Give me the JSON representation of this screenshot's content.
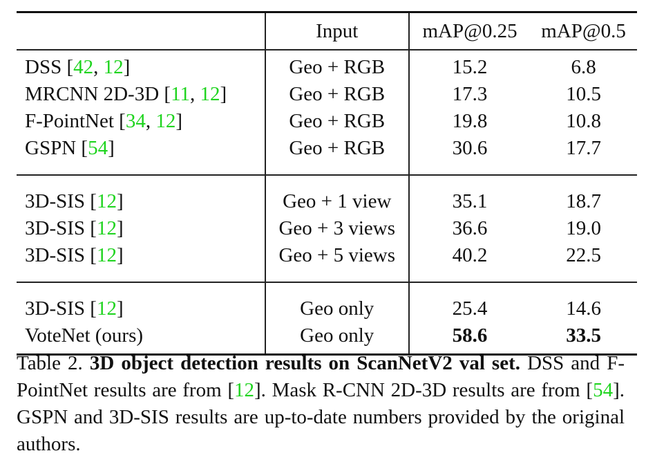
{
  "table": {
    "header": {
      "input": "Input",
      "map25": "mAP@0.25",
      "map50": "mAP@0.5"
    },
    "groups": [
      [
        {
          "method": "DSS",
          "cites": [
            "42",
            "12"
          ],
          "input": "Geo + RGB",
          "map25": "15.2",
          "map50": "6.8"
        },
        {
          "method": "MRCNN 2D-3D",
          "cites": [
            "11",
            "12"
          ],
          "input": "Geo + RGB",
          "map25": "17.3",
          "map50": "10.5"
        },
        {
          "method": "F-PointNet",
          "cites": [
            "34",
            "12"
          ],
          "input": "Geo + RGB",
          "map25": "19.8",
          "map50": "10.8"
        },
        {
          "method": "GSPN",
          "cites": [
            "54"
          ],
          "input": "Geo + RGB",
          "map25": "30.6",
          "map50": "17.7"
        }
      ],
      [
        {
          "method": "3D-SIS",
          "cites": [
            "12"
          ],
          "input": "Geo + 1 view",
          "map25": "35.1",
          "map50": "18.7"
        },
        {
          "method": "3D-SIS",
          "cites": [
            "12"
          ],
          "input": "Geo + 3 views",
          "map25": "36.6",
          "map50": "19.0"
        },
        {
          "method": "3D-SIS",
          "cites": [
            "12"
          ],
          "input": "Geo + 5 views",
          "map25": "40.2",
          "map50": "22.5"
        }
      ],
      [
        {
          "method": "3D-SIS",
          "cites": [
            "12"
          ],
          "input": "Geo only",
          "map25": "25.4",
          "map50": "14.6"
        },
        {
          "method": "VoteNet (ours)",
          "cites": [],
          "input": "Geo only",
          "map25": "58.6",
          "map50": "33.5",
          "best": true
        }
      ]
    ]
  },
  "caption": {
    "label": "Table 2.",
    "title": "3D object detection results on ScanNetV2 val set.",
    "s1": "DSS and F-PointNet results are from",
    "s1_cite": "12",
    "s2": "Mask R-CNN 2D-3D results are from",
    "s2_cite": "54",
    "s3": "GSPN and 3D-SIS results are up-to-date numbers provided by the original authors."
  }
}
